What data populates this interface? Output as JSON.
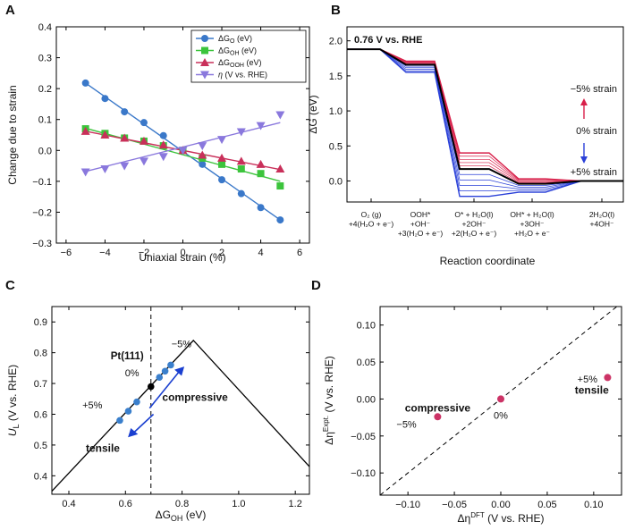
{
  "panel_letters": [
    "A",
    "B",
    "C",
    "D"
  ],
  "chart_data": [
    {
      "panel": "A",
      "type": "scatter",
      "xlabel": "Uniaxial strain (%)",
      "ylabel": "Change due to strain",
      "xlim": [
        -6.5,
        6.5
      ],
      "ylim": [
        -0.3,
        0.4
      ],
      "xticks": [
        -6,
        -4,
        -2,
        0,
        2,
        4,
        6
      ],
      "yticks": [
        -0.3,
        -0.2,
        -0.1,
        0.0,
        0.1,
        0.2,
        0.3,
        0.4
      ],
      "xtick_labels": [
        "−6",
        "−4",
        "−2",
        "0",
        "2",
        "4",
        "6"
      ],
      "ytick_labels": [
        "−0.3",
        "−0.2",
        "−0.1",
        "0.0",
        "0.1",
        "0.2",
        "0.3",
        "0.4"
      ],
      "x": [
        -5,
        -4,
        -3,
        -2,
        -1,
        0,
        1,
        2,
        3,
        4,
        5
      ],
      "series": [
        {
          "name": "ΔG_O (eV)",
          "legend_main": "ΔG",
          "legend_sub": "O",
          "legend_tail": " (eV)",
          "color": "#3a78c9",
          "marker": "circle",
          "values": [
            0.218,
            0.168,
            0.125,
            0.09,
            0.048,
            0.0,
            -0.045,
            -0.095,
            -0.14,
            -0.185,
            -0.225
          ],
          "fit": [
            0.218,
            -0.225
          ]
        },
        {
          "name": "ΔG_OH (eV)",
          "legend_main": "ΔG",
          "legend_sub": "OH",
          "legend_tail": " (eV)",
          "color": "#3cc43c",
          "marker": "square",
          "values": [
            0.07,
            0.055,
            0.04,
            0.03,
            0.015,
            0.0,
            -0.025,
            -0.045,
            -0.06,
            -0.075,
            -0.115
          ],
          "fit": [
            0.072,
            -0.1
          ]
        },
        {
          "name": "ΔG_OOH (eV)",
          "legend_main": "ΔG",
          "legend_sub": "OOH",
          "legend_tail": " (eV)",
          "color": "#c9305a",
          "marker": "triangle-up",
          "values": [
            0.062,
            0.05,
            0.04,
            0.03,
            0.018,
            0.0,
            -0.015,
            -0.025,
            -0.035,
            -0.045,
            -0.06
          ],
          "fit": [
            0.062,
            -0.062
          ]
        },
        {
          "name": "η (V vs. RHE)",
          "legend_main": "η",
          "legend_sub": "",
          "legend_tail": " (V vs. RHE)",
          "color": "#8a78dd",
          "marker": "triangle-down",
          "values": [
            -0.07,
            -0.06,
            -0.05,
            -0.035,
            -0.02,
            0.0,
            0.015,
            0.035,
            0.06,
            0.08,
            0.115
          ],
          "fit": [
            -0.068,
            0.09
          ]
        }
      ]
    },
    {
      "panel": "B",
      "type": "line",
      "title": "0.76 V vs. RHE",
      "ylabel": "ΔG (eV)",
      "xlabel": "Reaction coordinate",
      "ylim": [
        -0.3,
        2.2
      ],
      "yticks": [
        0.0,
        0.5,
        1.0,
        1.5,
        2.0
      ],
      "ytick_labels": [
        "0.0",
        "0.5",
        "1.0",
        "1.5",
        "2.0"
      ],
      "states": [
        {
          "lines": [
            "O₂ (g)",
            "+4(H₂O + e⁻)"
          ]
        },
        {
          "lines": [
            "OOH*",
            "+OH⁻",
            "+3(H₂O + e⁻)"
          ]
        },
        {
          "lines": [
            "O* + H₂O(l)",
            "+2OH⁻",
            "+2(H₂O + e⁻)"
          ]
        },
        {
          "lines": [
            "OH* + H₂O(l)",
            "+3OH⁻",
            "+H₂O + e⁻"
          ]
        },
        {
          "lines": [
            "2H₂O(l)",
            "+4OH⁻"
          ]
        }
      ],
      "reference_levels": [
        1.88,
        1.66,
        0.17,
        -0.04,
        0.0
      ],
      "strain_levels": {
        "compressive_max_-5": [
          1.88,
          1.71,
          0.4,
          0.03,
          0.0
        ],
        "tensile_max_+5": [
          1.88,
          1.55,
          -0.22,
          -0.16,
          0.0
        ]
      },
      "annotations": {
        "compressive": "−5% strain",
        "reference": "0% strain",
        "tensile": "+5% strain"
      },
      "colors": {
        "compressive": "#d8204a",
        "reference": "#000000",
        "tensile": "#2a40d8"
      }
    },
    {
      "panel": "C",
      "type": "line",
      "xlabel_main": "ΔG",
      "xlabel_sub": "OH",
      "xlabel_tail": " (eV)",
      "ylabel_main": "U",
      "ylabel_sub": "L",
      "ylabel_tail": " (V vs. RHE)",
      "xlim": [
        0.34,
        1.25
      ],
      "ylim": [
        0.34,
        0.95
      ],
      "xticks": [
        0.4,
        0.6,
        0.8,
        1.0,
        1.2
      ],
      "xtick_labels": [
        "0.4",
        "0.6",
        "0.8",
        "1.0",
        "1.2"
      ],
      "yticks": [
        0.4,
        0.5,
        0.6,
        0.7,
        0.8,
        0.9
      ],
      "ytick_labels": [
        "0.4",
        "0.5",
        "0.6",
        "0.7",
        "0.8",
        "0.9"
      ],
      "volcano": {
        "x": [
          0.34,
          0.84,
          1.25
        ],
        "y": [
          0.35,
          0.84,
          0.43
        ]
      },
      "pt111_x": 0.69,
      "points": {
        "x": [
          0.58,
          0.61,
          0.64,
          0.69,
          0.72,
          0.74,
          0.76
        ],
        "y": [
          0.58,
          0.61,
          0.64,
          0.69,
          0.72,
          0.74,
          0.76
        ]
      },
      "point_colors": [
        "#3a7fcc",
        "#3a7fcc",
        "#3a7fcc",
        "#000000",
        "#3a7fcc",
        "#3a7fcc",
        "#3a7fcc"
      ],
      "labels": {
        "pt111": "Pt(111)",
        "minus5": "−5%",
        "zero": "0%",
        "plus5": "+5%",
        "compressive": "compressive",
        "tensile": "tensile"
      },
      "arrow_colors": {
        "compressive": "#1a3fd0",
        "tensile": "#1a3fd0"
      },
      "label_color": "#3a7fcc"
    },
    {
      "panel": "D",
      "type": "scatter",
      "xlabel_main": "Δη",
      "xlabel_sup": "DFT",
      "xlabel_tail": " (V vs. RHE)",
      "ylabel_main": "Δη",
      "ylabel_sup": "Expt.",
      "ylabel_tail": " (V vs. RHE)",
      "xlim": [
        -0.13,
        0.13
      ],
      "ylim": [
        -0.13,
        0.125
      ],
      "xticks": [
        -0.1,
        -0.05,
        0.0,
        0.05,
        0.1
      ],
      "xtick_labels": [
        "−0.10",
        "−0.05",
        "0.00",
        "0.05",
        "0.10"
      ],
      "yticks": [
        -0.1,
        -0.05,
        0.0,
        0.05,
        0.1
      ],
      "ytick_labels": [
        "−0.10",
        "−0.05",
        "0.00",
        "0.05",
        "0.10"
      ],
      "points": {
        "x": [
          -0.068,
          0.0,
          0.115
        ],
        "y": [
          -0.024,
          0.0,
          0.029
        ]
      },
      "point_color": "#cc3366",
      "labels": {
        "compressive": "compressive",
        "minus5": "−5%",
        "zero": "0%",
        "plus5": "+5%",
        "tensile": "tensile"
      }
    }
  ]
}
